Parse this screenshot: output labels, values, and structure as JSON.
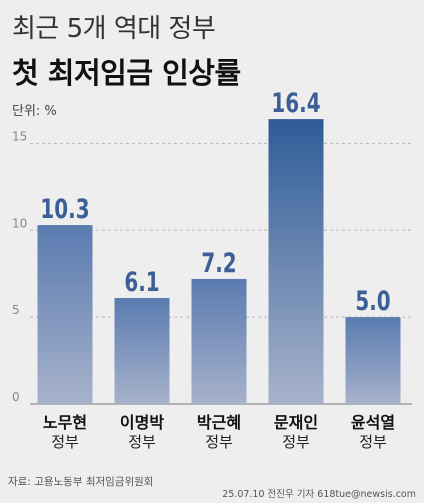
{
  "header": {
    "title_line1": "최근 5개 역대 정부",
    "title_line2": "첫 최저임금 인상률",
    "unit": "단위: %"
  },
  "footer": {
    "source": "자료: 고용노동부 최저임금위원회",
    "credit": "25.07.10 전진우 기자 618tue@newsis.com"
  },
  "colors": {
    "bar_top": "#5a7bb0",
    "bar_bottom": "#a7b2cb",
    "bar_highlight_top": "#2e5c97",
    "value_label": "#3d5f97",
    "grid": "#b8b8b8"
  },
  "chart_data": {
    "type": "bar",
    "categories": [
      {
        "name": "노무현",
        "suffix": "정부"
      },
      {
        "name": "이명박",
        "suffix": "정부"
      },
      {
        "name": "박근혜",
        "suffix": "정부"
      },
      {
        "name": "문재인",
        "suffix": "정부"
      },
      {
        "name": "윤석열",
        "suffix": "정부"
      }
    ],
    "values": [
      10.3,
      6.1,
      7.2,
      16.4,
      5.0
    ],
    "value_labels": [
      "10.3",
      "6.1",
      "7.2",
      "16.4",
      "5.0"
    ],
    "yticks": [
      "0",
      "5",
      "10",
      "15"
    ],
    "ylim": [
      0,
      17.5
    ],
    "grid": true,
    "highlight_index": 3
  }
}
